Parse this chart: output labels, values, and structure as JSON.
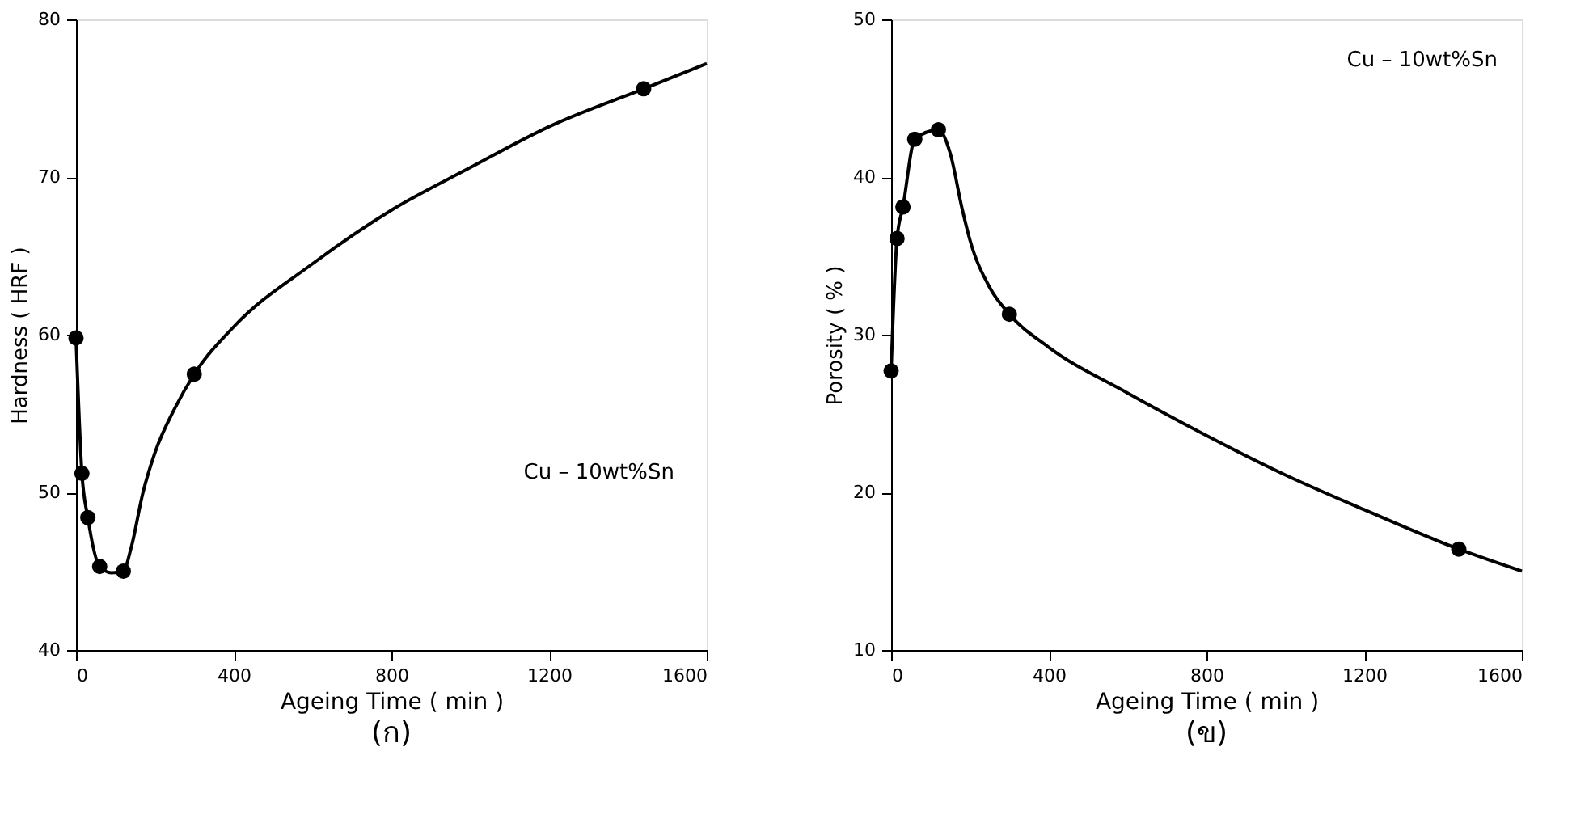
{
  "chart_data": [
    {
      "type": "line",
      "title": "(ก)",
      "xlabel": "Ageing Time ( min )",
      "ylabel": "Hardness ( HRF )",
      "xlim": [
        0,
        1600
      ],
      "ylim": [
        40,
        80
      ],
      "xticks": [
        0,
        400,
        800,
        1200,
        1600
      ],
      "yticks": [
        40,
        50,
        60,
        70,
        80
      ],
      "grid": false,
      "annotations": [
        "Cu – 10wt%Sn"
      ],
      "series": [
        {
          "color": "#000000",
          "marker": "none",
          "line_style": "solid",
          "x": [
            0,
            15,
            30,
            60,
            90,
            120,
            140,
            170,
            200,
            250,
            300,
            400,
            600,
            800,
            1000,
            1200,
            1440,
            1600
          ],
          "values": [
            59.8,
            51.2,
            48.4,
            45.3,
            44.9,
            45.0,
            46.5,
            50.0,
            52.5,
            55.3,
            57.5,
            60.5,
            64.5,
            67.9,
            70.6,
            73.2,
            75.6,
            77.2
          ]
        },
        {
          "type": "scatter",
          "color": "#000000",
          "marker": "circle",
          "x": [
            0,
            15,
            30,
            60,
            120,
            300,
            1440
          ],
          "values": [
            59.8,
            51.2,
            48.4,
            45.3,
            45.0,
            57.5,
            75.6
          ]
        }
      ]
    },
    {
      "type": "line",
      "title": "(ข)",
      "xlabel": "Ageing Time ( min )",
      "ylabel": "Porosity ( % )",
      "xlim": [
        0,
        1600
      ],
      "ylim": [
        10,
        50
      ],
      "xticks": [
        0,
        400,
        800,
        1200,
        1600
      ],
      "yticks": [
        10,
        20,
        30,
        40,
        50
      ],
      "grid": false,
      "annotations": [
        "Cu – 10wt%Sn"
      ],
      "series": [
        {
          "color": "#000000",
          "marker": "none",
          "line_style": "solid",
          "x": [
            0,
            15,
            30,
            60,
            120,
            150,
            180,
            200,
            250,
            300,
            400,
            600,
            800,
            1000,
            1200,
            1440,
            1600
          ],
          "values": [
            27.7,
            36.1,
            38.1,
            42.4,
            43.0,
            41.5,
            38.0,
            36.0,
            33.0,
            31.3,
            29.2,
            26.3,
            23.6,
            21.1,
            18.9,
            16.4,
            15.0
          ]
        },
        {
          "type": "scatter",
          "color": "#000000",
          "marker": "circle",
          "x": [
            0,
            15,
            30,
            60,
            120,
            300,
            1440
          ],
          "values": [
            27.7,
            36.1,
            38.1,
            42.4,
            43.0,
            31.3,
            16.4
          ]
        }
      ]
    }
  ]
}
